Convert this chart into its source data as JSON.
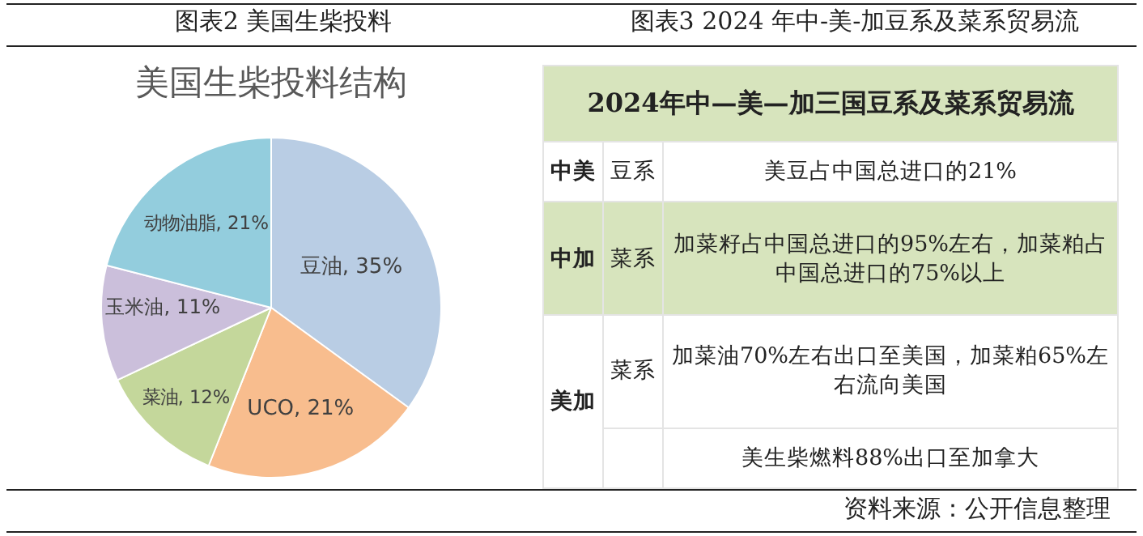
{
  "chart_data": [
    {
      "type": "pie",
      "title": "图表2 美国生柴投料",
      "subtitle": "美国生柴投料结构",
      "categories": [
        "豆油",
        "UCO",
        "菜油",
        "玉米油",
        "动物油脂"
      ],
      "values": [
        35,
        21,
        12,
        11,
        21
      ],
      "value_labels": [
        "35%",
        "21%",
        "12%",
        "11%",
        "21%"
      ],
      "colors": [
        "#b9cde4",
        "#f8bd8e",
        "#c4d79b",
        "#cbbfdb",
        "#93cddd"
      ]
    },
    {
      "type": "other",
      "title": "图表3 2024 年中-美-加豆系及菜系贸易流",
      "subtitle": "2024年中—美—加三国豆系及菜系贸易流",
      "annotations": [
        "中美",
        "豆系",
        "美豆占中国总进口的21%",
        "中加",
        "菜系",
        "加菜籽占中国总进口的95%左右，加菜粕占中国总进口的75%以上",
        "美加",
        "菜系",
        "加菜油70%左右出口至美国，加菜粕65%左右流向美国",
        "美生柴燃料88%出口至加拿大",
        "资料来源：公开信息整理"
      ]
    }
  ]
}
